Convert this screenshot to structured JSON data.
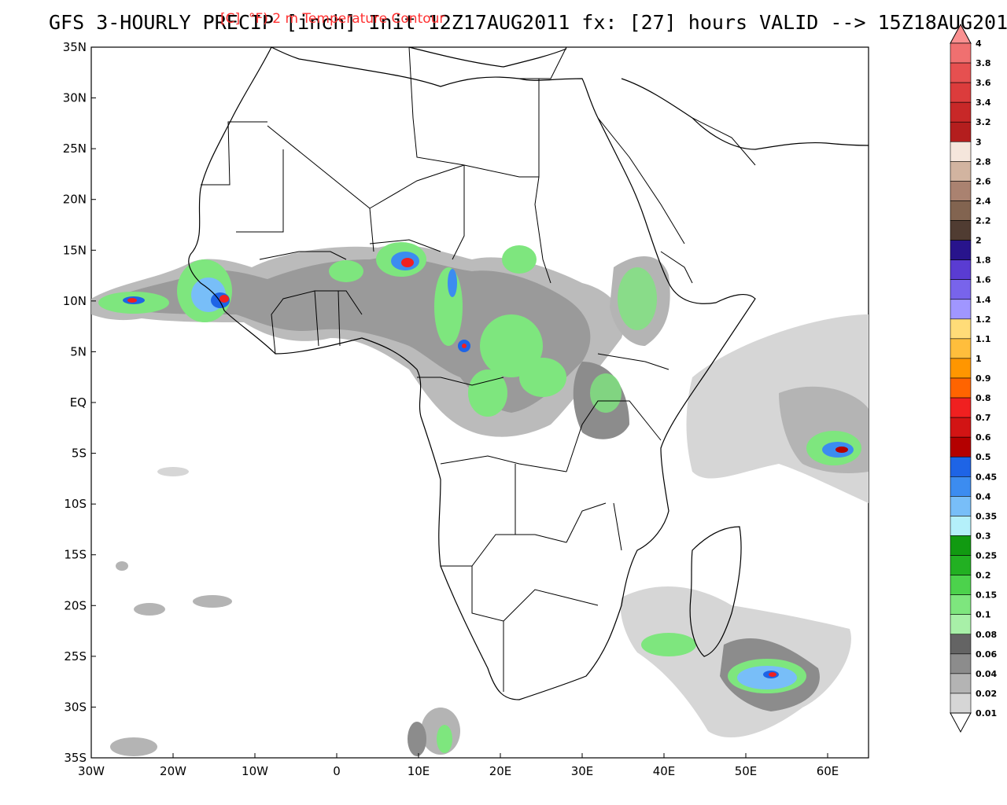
{
  "title": "GFS 3-HOURLY PRECIP [inch] Init 12Z17AUG2011 fx: [27] hours VALID --> 15Z18AUG2011",
  "overlay_title": "[C]  °F) 2 m Temperature Contour",
  "map": {
    "lon_range": [
      -30,
      65
    ],
    "lat_range": [
      -35,
      35
    ],
    "x_ticks": [
      "30W",
      "20W",
      "10W",
      "0",
      "10E",
      "20E",
      "30E",
      "40E",
      "50E",
      "60E"
    ],
    "y_ticks": [
      "35N",
      "30N",
      "25N",
      "20N",
      "15N",
      "10N",
      "5N",
      "EQ",
      "5S",
      "10S",
      "15S",
      "20S",
      "25S",
      "30S",
      "35S"
    ]
  },
  "colorbar": {
    "levels": [
      "0.01",
      "0.02",
      "0.04",
      "0.06",
      "0.08",
      "0.1",
      "0.15",
      "0.2",
      "0.25",
      "0.3",
      "0.35",
      "0.4",
      "0.45",
      "0.5",
      "0.6",
      "0.7",
      "0.8",
      "0.9",
      "1",
      "1.1",
      "1.2",
      "1.4",
      "1.6",
      "1.8",
      "2",
      "2.2",
      "2.4",
      "2.6",
      "2.8",
      "3",
      "3.2",
      "3.4",
      "3.6",
      "3.8",
      "4"
    ],
    "colors": [
      "#ffffff",
      "#d6d6d6",
      "#b4b4b4",
      "#8c8c8c",
      "#646464",
      "#a8f0a8",
      "#7ee67e",
      "#4cd24c",
      "#22b022",
      "#119a11",
      "#b4f0fa",
      "#78bef8",
      "#3c8cf0",
      "#1e64e6",
      "#b40000",
      "#d21414",
      "#f02020",
      "#ff6400",
      "#ff9600",
      "#ffbe3c",
      "#ffdc78",
      "#a096ff",
      "#7864eb",
      "#5a3cd2",
      "#28148c",
      "#503c32",
      "#826450",
      "#aa8270",
      "#d2b4a0",
      "#f5e6dc",
      "#b41e1e",
      "#c82828",
      "#dc3c3c",
      "#e65050",
      "#f07070",
      "#fa9090"
    ]
  }
}
